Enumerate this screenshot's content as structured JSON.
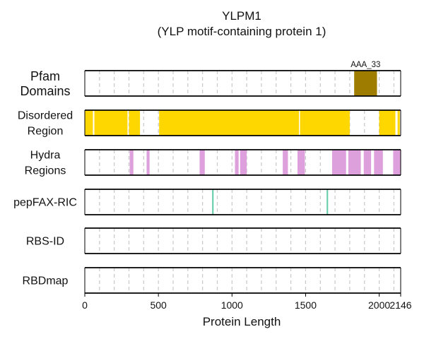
{
  "chart_data": {
    "type": "bar",
    "title": "YLPM1",
    "subtitle": "(YLP motif-containing protein 1)",
    "xlabel": "Protein Length",
    "xlim": [
      0,
      2146
    ],
    "xticks": [
      0,
      500,
      1000,
      1500,
      2000,
      2146
    ],
    "grid": "vertical dashed every 100",
    "tracks": [
      {
        "name": "Pfam\nDomains",
        "color": "#9e7c00",
        "segments": [
          {
            "start": 1830,
            "end": 1985,
            "label": "AAA_33"
          }
        ]
      },
      {
        "name": "Disordered\nRegion",
        "color": "#ffd700",
        "segments": [
          {
            "start": 0,
            "end": 55
          },
          {
            "start": 65,
            "end": 290
          },
          {
            "start": 300,
            "end": 375
          },
          {
            "start": 505,
            "end": 1455
          },
          {
            "start": 1462,
            "end": 1800
          },
          {
            "start": 2000,
            "end": 2110
          },
          {
            "start": 2125,
            "end": 2140
          }
        ]
      },
      {
        "name": "Hydra\nRegions",
        "color": "#dda0dd",
        "segments": [
          {
            "start": 305,
            "end": 330
          },
          {
            "start": 420,
            "end": 440
          },
          {
            "start": 780,
            "end": 815
          },
          {
            "start": 1020,
            "end": 1045
          },
          {
            "start": 1055,
            "end": 1100
          },
          {
            "start": 1345,
            "end": 1380
          },
          {
            "start": 1445,
            "end": 1495
          },
          {
            "start": 1680,
            "end": 1775
          },
          {
            "start": 1790,
            "end": 1875
          },
          {
            "start": 1895,
            "end": 1945
          },
          {
            "start": 1965,
            "end": 2025
          },
          {
            "start": 2095,
            "end": 2146
          }
        ]
      },
      {
        "name": "pepFAX-RIC",
        "color": "#66cdaa",
        "segments": [
          {
            "start": 865,
            "end": 875
          },
          {
            "start": 1643,
            "end": 1653
          }
        ]
      },
      {
        "name": "RBS-ID",
        "color": "#888888",
        "segments": []
      },
      {
        "name": "RBDmap",
        "color": "#888888",
        "segments": []
      }
    ]
  }
}
